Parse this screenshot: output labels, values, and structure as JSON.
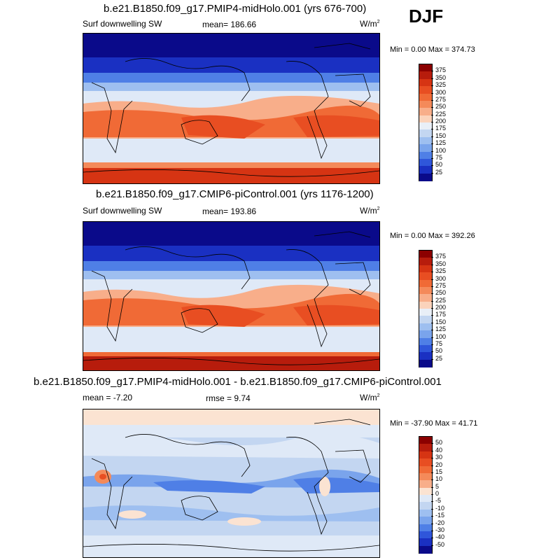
{
  "season": "DJF",
  "panels": [
    {
      "title": "b.e21.B1850.f09_g17.PMIP4-midHolo.001 (yrs 676-700)",
      "left_label": "Surf downwelling SW",
      "mean_label": "mean=  186.66",
      "units": "W/m",
      "units_sup": "2",
      "minmax": "Min =   0.00 Max = 374.73"
    },
    {
      "title": "b.e21.B1850.f09_g17.CMIP6-piControl.001 (yrs 1176-1200)",
      "left_label": "Surf downwelling SW",
      "mean_label": "mean=  193.86",
      "units": "W/m",
      "units_sup": "2",
      "minmax": "Min =   0.00 Max = 392.26"
    },
    {
      "title": "b.e21.B1850.f09_g17.PMIP4-midHolo.001 - b.e21.B1850.f09_g17.CMIP6-piControl.001",
      "left_label": "mean =  -7.20",
      "mean_label": "rmse =   9.74",
      "units": "W/m",
      "units_sup": "2",
      "minmax": "Min = -37.90 Max =  41.71"
    }
  ],
  "colorbars": {
    "abs": {
      "labels": [
        "375",
        "350",
        "325",
        "300",
        "275",
        "250",
        "225",
        "200",
        "175",
        "150",
        "125",
        "100",
        "75",
        "50",
        "25"
      ],
      "colors": [
        "#8b0000",
        "#b71c0c",
        "#d63413",
        "#e84e22",
        "#f06a36",
        "#f48a5a",
        "#f8ae8a",
        "#fbd3bb",
        "#e9eff7",
        "#c3d6f1",
        "#9ebff0",
        "#7aa4ec",
        "#4f7fe6",
        "#2f56da",
        "#1a30c2",
        "#0a0a8a"
      ]
    },
    "diff": {
      "labels": [
        "50",
        "40",
        "30",
        "20",
        "15",
        "10",
        "5",
        "0",
        "-5",
        "-10",
        "-15",
        "-20",
        "-30",
        "-40",
        "-50"
      ],
      "colors": [
        "#8b0000",
        "#b71c0c",
        "#d63413",
        "#e84e22",
        "#f06a36",
        "#f48a5a",
        "#f8ae8a",
        "#fbe3d2",
        "#dfe9f7",
        "#c3d6f1",
        "#9ebff0",
        "#7aa4ec",
        "#4f7fe6",
        "#2f56da",
        "#1a30c2",
        "#0a0a8a"
      ]
    }
  }
}
